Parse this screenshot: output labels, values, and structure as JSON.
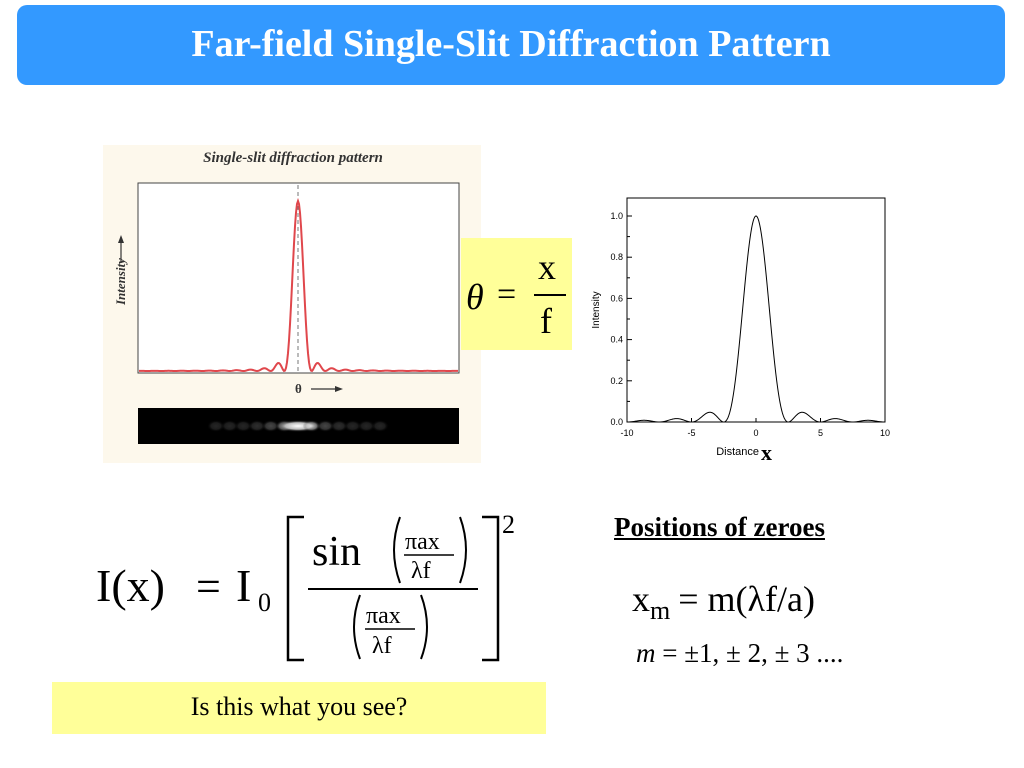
{
  "slide": {
    "title": "Far-field Single-Slit Diffraction Pattern",
    "accent_color": "#3399ff",
    "highlight_color": "#ffff99"
  },
  "left_figure": {
    "title": "Single-slit diffraction pattern",
    "ylabel": "Intensity",
    "xlabel": "θ",
    "curve_color": "#e0474c"
  },
  "theta_formula": {
    "lhs": "θ",
    "eq": "=",
    "numerator": "x",
    "denominator": "f"
  },
  "intensity_formula": {
    "lhs": "I(x)",
    "eq": "=",
    "i0": "I",
    "i0_sub": "0",
    "sin": "sin",
    "numerator": "πax",
    "denominator": "λf",
    "exponent": "2"
  },
  "zeroes": {
    "heading": "Positions of zeroes",
    "x": "x",
    "x_sub": "m",
    "rhs": "= m(λf/a)",
    "m_values": "m = ±1, ± 2, ± 3 ...."
  },
  "prompt": "Is this what you see?",
  "chart_data": {
    "type": "line",
    "function": "sinc^2",
    "xlabel": "Distance",
    "xlabel_symbol": "x",
    "ylabel": "Intensity",
    "xlim": [
      -10,
      10
    ],
    "ylim": [
      0,
      1.0
    ],
    "x_ticks": [
      -10,
      -5,
      0,
      5,
      10
    ],
    "y_ticks": [
      "0.0",
      "0.2",
      "0.4",
      "0.6",
      "0.8",
      "1.0"
    ],
    "zero_spacing": 2.5,
    "peak_value": 1.0,
    "grid": false
  }
}
